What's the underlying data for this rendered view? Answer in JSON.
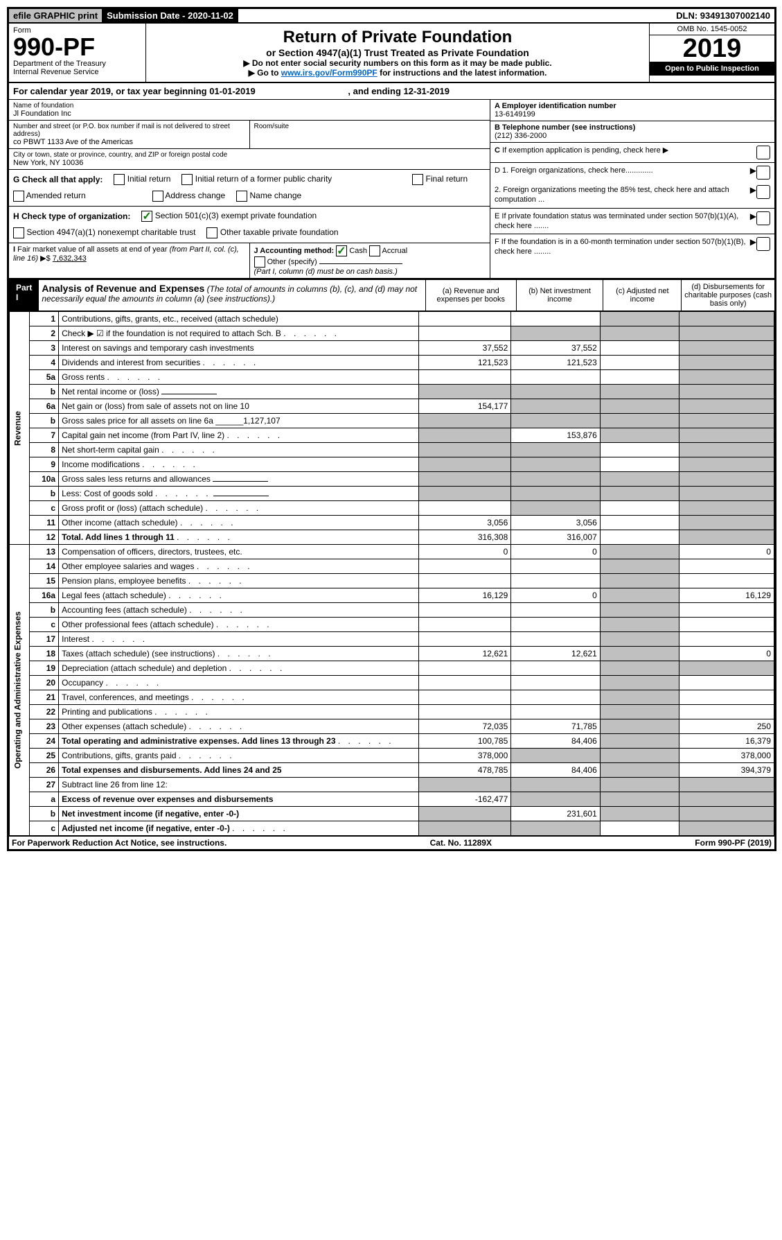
{
  "topbar": {
    "efile": "efile GRAPHIC print",
    "subdate_label": "Submission Date - 2020-11-02",
    "dln": "DLN: 93491307002140"
  },
  "header": {
    "form_label": "Form",
    "form_no": "990-PF",
    "dept": "Department of the Treasury",
    "irs": "Internal Revenue Service",
    "title": "Return of Private Foundation",
    "subtitle": "or Section 4947(a)(1) Trust Treated as Private Foundation",
    "instr1": "▶ Do not enter social security numbers on this form as it may be made public.",
    "instr2_pre": "▶ Go to ",
    "instr2_link": "www.irs.gov/Form990PF",
    "instr2_post": " for instructions and the latest information.",
    "omb": "OMB No. 1545-0052",
    "year": "2019",
    "open": "Open to Public Inspection"
  },
  "calyear": {
    "text_a": "For calendar year 2019, or tax year beginning 01-01-2019",
    "text_b": ", and ending 12-31-2019"
  },
  "info": {
    "name_label": "Name of foundation",
    "name": "Jl Foundation Inc",
    "addr_label": "Number and street (or P.O. box number if mail is not delivered to street address)",
    "addr": "co PBWT 1133 Ave of the Americas",
    "room_label": "Room/suite",
    "city_label": "City or town, state or province, country, and ZIP or foreign postal code",
    "city": "New York, NY  10036",
    "a_label": "A Employer identification number",
    "a_val": "13-6149199",
    "b_label": "B Telephone number (see instructions)",
    "b_val": "(212) 336-2000",
    "c_label": "C  If exemption application is pending, check here",
    "d1": "D 1. Foreign organizations, check here.............",
    "d2": "2. Foreign organizations meeting the 85% test, check here and attach computation ...",
    "e": "E  If private foundation status was terminated under section 507(b)(1)(A), check here .......",
    "f": "F  If the foundation is in a 60-month termination under section 507(b)(1)(B), check here ........"
  },
  "g": {
    "label": "G Check all that apply:",
    "opts": [
      "Initial return",
      "Initial return of a former public charity",
      "Final return",
      "Amended return",
      "Address change",
      "Name change"
    ]
  },
  "h": {
    "label": "H Check type of organization:",
    "opt1": "Section 501(c)(3) exempt private foundation",
    "opt2": "Section 4947(a)(1) nonexempt charitable trust",
    "opt3": "Other taxable private foundation"
  },
  "i": {
    "label": "I Fair market value of all assets at end of year (from Part II, col. (c), line 16) ▶$",
    "val": "7,632,343"
  },
  "j": {
    "label": "J Accounting method:",
    "cash": "Cash",
    "accrual": "Accrual",
    "other": "Other (specify)",
    "note": "(Part I, column (d) must be on cash basis.)"
  },
  "part1": {
    "label": "Part I",
    "title": "Analysis of Revenue and Expenses",
    "title_note": "(The total of amounts in columns (b), (c), and (d) may not necessarily equal the amounts in column (a) (see instructions).)",
    "col_a": "(a) Revenue and expenses per books",
    "col_b": "(b) Net investment income",
    "col_c": "(c) Adjusted net income",
    "col_d": "(d) Disbursements for charitable purposes (cash basis only)"
  },
  "revenue_label": "Revenue",
  "expenses_label": "Operating and Administrative Expenses",
  "lines": [
    {
      "no": "1",
      "desc": "Contributions, gifts, grants, etc., received (attach schedule)",
      "a": "",
      "b": "",
      "c": "shade",
      "d": "shade"
    },
    {
      "no": "2",
      "desc": "Check ▶ ☑ if the foundation is not required to attach Sch. B",
      "a": "",
      "b": "shade",
      "c": "shade",
      "d": "shade",
      "dots": true
    },
    {
      "no": "3",
      "desc": "Interest on savings and temporary cash investments",
      "a": "37,552",
      "b": "37,552",
      "c": "",
      "d": "shade"
    },
    {
      "no": "4",
      "desc": "Dividends and interest from securities",
      "a": "121,523",
      "b": "121,523",
      "c": "",
      "d": "shade",
      "dots": true
    },
    {
      "no": "5a",
      "desc": "Gross rents",
      "a": "",
      "b": "",
      "c": "",
      "d": "shade",
      "dots": true
    },
    {
      "no": "b",
      "desc": "Net rental income or (loss)",
      "a": "shade",
      "b": "shade",
      "c": "shade",
      "d": "shade",
      "underline": true
    },
    {
      "no": "6a",
      "desc": "Net gain or (loss) from sale of assets not on line 10",
      "a": "154,177",
      "b": "shade",
      "c": "shade",
      "d": "shade"
    },
    {
      "no": "b",
      "desc": "Gross sales price for all assets on line 6a ______1,127,107",
      "a": "shade",
      "b": "shade",
      "c": "shade",
      "d": "shade"
    },
    {
      "no": "7",
      "desc": "Capital gain net income (from Part IV, line 2)",
      "a": "shade",
      "b": "153,876",
      "c": "shade",
      "d": "shade",
      "dots": true
    },
    {
      "no": "8",
      "desc": "Net short-term capital gain",
      "a": "shade",
      "b": "shade",
      "c": "",
      "d": "shade",
      "dots": true
    },
    {
      "no": "9",
      "desc": "Income modifications",
      "a": "shade",
      "b": "shade",
      "c": "",
      "d": "shade",
      "dots": true
    },
    {
      "no": "10a",
      "desc": "Gross sales less returns and allowances",
      "a": "shade",
      "b": "shade",
      "c": "shade",
      "d": "shade",
      "underline": true
    },
    {
      "no": "b",
      "desc": "Less: Cost of goods sold",
      "a": "shade",
      "b": "shade",
      "c": "shade",
      "d": "shade",
      "dots": true,
      "underline": true
    },
    {
      "no": "c",
      "desc": "Gross profit or (loss) (attach schedule)",
      "a": "",
      "b": "shade",
      "c": "",
      "d": "shade",
      "dots": true
    },
    {
      "no": "11",
      "desc": "Other income (attach schedule)",
      "a": "3,056",
      "b": "3,056",
      "c": "",
      "d": "shade",
      "dots": true
    },
    {
      "no": "12",
      "desc": "Total. Add lines 1 through 11",
      "a": "316,308",
      "b": "316,007",
      "c": "",
      "d": "shade",
      "bold": true,
      "dots": true
    },
    {
      "no": "13",
      "desc": "Compensation of officers, directors, trustees, etc.",
      "a": "0",
      "b": "0",
      "c": "shade",
      "d": "0"
    },
    {
      "no": "14",
      "desc": "Other employee salaries and wages",
      "a": "",
      "b": "",
      "c": "shade",
      "d": "",
      "dots": true
    },
    {
      "no": "15",
      "desc": "Pension plans, employee benefits",
      "a": "",
      "b": "",
      "c": "shade",
      "d": "",
      "dots": true
    },
    {
      "no": "16a",
      "desc": "Legal fees (attach schedule)",
      "a": "16,129",
      "b": "0",
      "c": "shade",
      "d": "16,129",
      "dots": true
    },
    {
      "no": "b",
      "desc": "Accounting fees (attach schedule)",
      "a": "",
      "b": "",
      "c": "shade",
      "d": "",
      "dots": true
    },
    {
      "no": "c",
      "desc": "Other professional fees (attach schedule)",
      "a": "",
      "b": "",
      "c": "shade",
      "d": "",
      "dots": true
    },
    {
      "no": "17",
      "desc": "Interest",
      "a": "",
      "b": "",
      "c": "shade",
      "d": "",
      "dots": true
    },
    {
      "no": "18",
      "desc": "Taxes (attach schedule) (see instructions)",
      "a": "12,621",
      "b": "12,621",
      "c": "shade",
      "d": "0",
      "dots": true
    },
    {
      "no": "19",
      "desc": "Depreciation (attach schedule) and depletion",
      "a": "",
      "b": "",
      "c": "shade",
      "d": "shade",
      "dots": true
    },
    {
      "no": "20",
      "desc": "Occupancy",
      "a": "",
      "b": "",
      "c": "shade",
      "d": "",
      "dots": true
    },
    {
      "no": "21",
      "desc": "Travel, conferences, and meetings",
      "a": "",
      "b": "",
      "c": "shade",
      "d": "",
      "dots": true
    },
    {
      "no": "22",
      "desc": "Printing and publications",
      "a": "",
      "b": "",
      "c": "shade",
      "d": "",
      "dots": true
    },
    {
      "no": "23",
      "desc": "Other expenses (attach schedule)",
      "a": "72,035",
      "b": "71,785",
      "c": "shade",
      "d": "250",
      "dots": true
    },
    {
      "no": "24",
      "desc": "Total operating and administrative expenses. Add lines 13 through 23",
      "a": "100,785",
      "b": "84,406",
      "c": "shade",
      "d": "16,379",
      "bold": true,
      "dots": true
    },
    {
      "no": "25",
      "desc": "Contributions, gifts, grants paid",
      "a": "378,000",
      "b": "shade",
      "c": "shade",
      "d": "378,000",
      "dots": true
    },
    {
      "no": "26",
      "desc": "Total expenses and disbursements. Add lines 24 and 25",
      "a": "478,785",
      "b": "84,406",
      "c": "shade",
      "d": "394,379",
      "bold": true
    },
    {
      "no": "27",
      "desc": "Subtract line 26 from line 12:",
      "a": "shade",
      "b": "shade",
      "c": "shade",
      "d": "shade"
    },
    {
      "no": "a",
      "desc": "Excess of revenue over expenses and disbursements",
      "a": "-162,477",
      "b": "shade",
      "c": "shade",
      "d": "shade",
      "bold": true
    },
    {
      "no": "b",
      "desc": "Net investment income (if negative, enter -0-)",
      "a": "shade",
      "b": "231,601",
      "c": "shade",
      "d": "shade",
      "bold": true
    },
    {
      "no": "c",
      "desc": "Adjusted net income (if negative, enter -0-)",
      "a": "shade",
      "b": "shade",
      "c": "",
      "d": "shade",
      "bold": true,
      "dots": true
    }
  ],
  "footer": {
    "left": "For Paperwork Reduction Act Notice, see instructions.",
    "mid": "Cat. No. 11289X",
    "right": "Form 990-PF (2019)"
  }
}
